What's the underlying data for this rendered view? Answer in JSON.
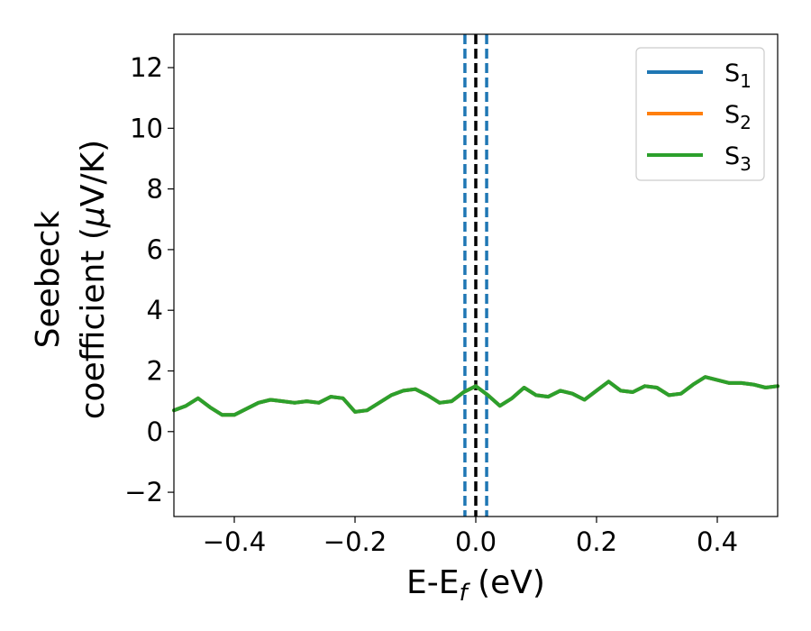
{
  "chart_data": {
    "type": "line",
    "xlabel": {
      "main": "E-E",
      "sub": "f",
      "unit": " (eV)"
    },
    "ylabel": {
      "line1": "Seebeck",
      "line2_prefix": "coefficient  (",
      "mu": "μ",
      "line2_suffix": "V/K)"
    },
    "xlim": [
      -0.5,
      0.5
    ],
    "ylim": [
      -2.8,
      13.1
    ],
    "xticks": [
      -0.4,
      -0.2,
      0.0,
      0.2,
      0.4
    ],
    "xtick_labels": [
      "−0.4",
      "−0.2",
      "0.0",
      "0.2",
      "0.4"
    ],
    "yticks": [
      -2,
      0,
      2,
      4,
      6,
      8,
      10,
      12
    ],
    "ytick_labels": [
      "−2",
      "0",
      "2",
      "4",
      "6",
      "8",
      "10",
      "12"
    ],
    "grid": false,
    "legend_position": "top-right",
    "vlines": [
      {
        "x": 0.0,
        "color": "#000000",
        "style": "dashed"
      },
      {
        "x": -0.018,
        "color": "#1f77b4",
        "style": "dashed"
      },
      {
        "x": 0.018,
        "color": "#1f77b4",
        "style": "dashed"
      }
    ],
    "x": [
      -0.5,
      -0.48,
      -0.46,
      -0.44,
      -0.42,
      -0.4,
      -0.38,
      -0.36,
      -0.34,
      -0.32,
      -0.3,
      -0.28,
      -0.26,
      -0.24,
      -0.22,
      -0.2,
      -0.18,
      -0.16,
      -0.14,
      -0.12,
      -0.1,
      -0.08,
      -0.06,
      -0.04,
      -0.02,
      0.0,
      0.02,
      0.04,
      0.06,
      0.08,
      0.1,
      0.12,
      0.14,
      0.16,
      0.18,
      0.2,
      0.22,
      0.24,
      0.26,
      0.28,
      0.3,
      0.32,
      0.34,
      0.36,
      0.38,
      0.4,
      0.42,
      0.44,
      0.46,
      0.48,
      0.5
    ],
    "series": [
      {
        "name": "S",
        "sub": "1",
        "color": "#1f77b4",
        "values": [
          0.7,
          0.85,
          1.1,
          0.8,
          0.55,
          0.55,
          0.75,
          0.95,
          1.05,
          1.0,
          0.95,
          1.0,
          0.95,
          1.15,
          1.1,
          0.65,
          0.7,
          0.95,
          1.2,
          1.35,
          1.4,
          1.2,
          0.95,
          1.0,
          1.3,
          1.5,
          1.2,
          0.85,
          1.1,
          1.45,
          1.2,
          1.15,
          1.35,
          1.25,
          1.05,
          1.35,
          1.65,
          1.35,
          1.3,
          1.5,
          1.45,
          1.2,
          1.25,
          1.55,
          1.8,
          1.7,
          1.6,
          1.6,
          1.55,
          1.45,
          1.5
        ]
      },
      {
        "name": "S",
        "sub": "2",
        "color": "#ff7f0e",
        "values": [
          0.7,
          0.85,
          1.1,
          0.8,
          0.55,
          0.55,
          0.75,
          0.95,
          1.05,
          1.0,
          0.95,
          1.0,
          0.95,
          1.15,
          1.1,
          0.65,
          0.7,
          0.95,
          1.2,
          1.35,
          1.4,
          1.2,
          0.95,
          1.0,
          1.3,
          1.5,
          1.2,
          0.85,
          1.1,
          1.45,
          1.2,
          1.15,
          1.35,
          1.25,
          1.05,
          1.35,
          1.65,
          1.35,
          1.3,
          1.5,
          1.45,
          1.2,
          1.25,
          1.55,
          1.8,
          1.7,
          1.6,
          1.6,
          1.55,
          1.45,
          1.5
        ]
      },
      {
        "name": "S",
        "sub": "3",
        "color": "#2ca02c",
        "values": [
          0.7,
          0.85,
          1.1,
          0.8,
          0.55,
          0.55,
          0.75,
          0.95,
          1.05,
          1.0,
          0.95,
          1.0,
          0.95,
          1.15,
          1.1,
          0.65,
          0.7,
          0.95,
          1.2,
          1.35,
          1.4,
          1.2,
          0.95,
          1.0,
          1.3,
          1.5,
          1.2,
          0.85,
          1.1,
          1.45,
          1.2,
          1.15,
          1.35,
          1.25,
          1.05,
          1.35,
          1.65,
          1.35,
          1.3,
          1.5,
          1.45,
          1.2,
          1.25,
          1.55,
          1.8,
          1.7,
          1.6,
          1.6,
          1.55,
          1.45,
          1.5
        ]
      }
    ]
  }
}
